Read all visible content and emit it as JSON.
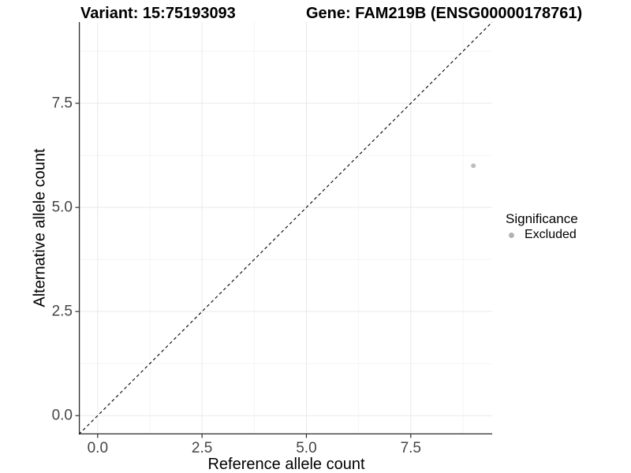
{
  "chart_data": {
    "type": "scatter",
    "title_left": "Variant: 15:75193093",
    "title_right": "Gene: FAM219B (ENSG00000178761)",
    "xlabel": "Reference allele count",
    "ylabel": "Alternative allele count",
    "xlim": [
      -0.45,
      9.45
    ],
    "ylim": [
      -0.45,
      9.45
    ],
    "xticks": {
      "values": [
        0,
        2.5,
        5,
        7.5
      ],
      "labels": [
        "0.0",
        "2.5",
        "5.0",
        "7.5"
      ]
    },
    "yticks": {
      "values": [
        0,
        2.5,
        5,
        7.5
      ],
      "labels": [
        "0.0",
        "2.5",
        "5.0",
        "7.5"
      ]
    },
    "minor_gridlines": [
      1.25,
      3.75,
      6.25,
      8.75
    ],
    "grid": {
      "major_color": "#e9e9e9",
      "minor_color": "#f4f4f4"
    },
    "axis_color": "#2b2b2b",
    "tick_label_color": "#454545",
    "reference_line": {
      "kind": "identity",
      "style": "dashed",
      "color": "#000000"
    },
    "series": [
      {
        "name": "Excluded",
        "color": "#bfbfbf",
        "point_radius": 3,
        "points": [
          {
            "x": 9,
            "y": 6
          }
        ]
      }
    ],
    "legend": {
      "position": "right",
      "title": "Significance",
      "entries": [
        {
          "label": "Excluded",
          "color": "#b3b3b3"
        }
      ]
    }
  }
}
